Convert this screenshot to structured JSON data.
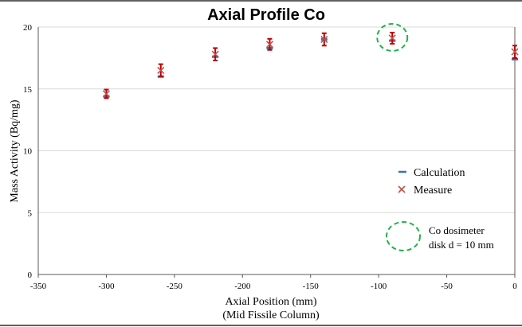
{
  "chart_data": {
    "type": "scatter",
    "title": "Axial Profile Co",
    "xlabel": "Axial Position (mm)",
    "xlabel_sub": "(Mid Fissile Column)",
    "ylabel": "Mass Activity (Bq/mg)",
    "xlim": [
      -350,
      0
    ],
    "ylim": [
      0,
      20
    ],
    "xticks": [
      -350,
      -300,
      -250,
      -200,
      -150,
      -100,
      -50,
      0
    ],
    "yticks": [
      0,
      5,
      10,
      15,
      20
    ],
    "grid": "horizontal",
    "legend_placement": "right",
    "series": [
      {
        "name": "Calculation",
        "marker": "dash",
        "color": "#2e75b6",
        "x": [
          -300,
          -260,
          -220,
          -180,
          -140,
          -90,
          0
        ],
        "y": [
          14.4,
          16.0,
          17.6,
          18.3,
          19.0,
          18.9,
          17.4
        ]
      },
      {
        "name": "Measure",
        "marker": "x",
        "color": "#c0504d",
        "x": [
          -300,
          -260,
          -220,
          -180,
          -140,
          -90,
          0
        ],
        "y": [
          14.6,
          16.5,
          17.8,
          18.6,
          19.0,
          19.1,
          18.0
        ],
        "err": [
          0.35,
          0.5,
          0.5,
          0.45,
          0.5,
          0.45,
          0.5
        ]
      }
    ],
    "annotation": {
      "line1": "Co dosimeter",
      "line2": "disk d = 10 mm",
      "marked_point": {
        "x": -90,
        "y": 19.1
      },
      "circle_color": "#22b14c"
    }
  }
}
